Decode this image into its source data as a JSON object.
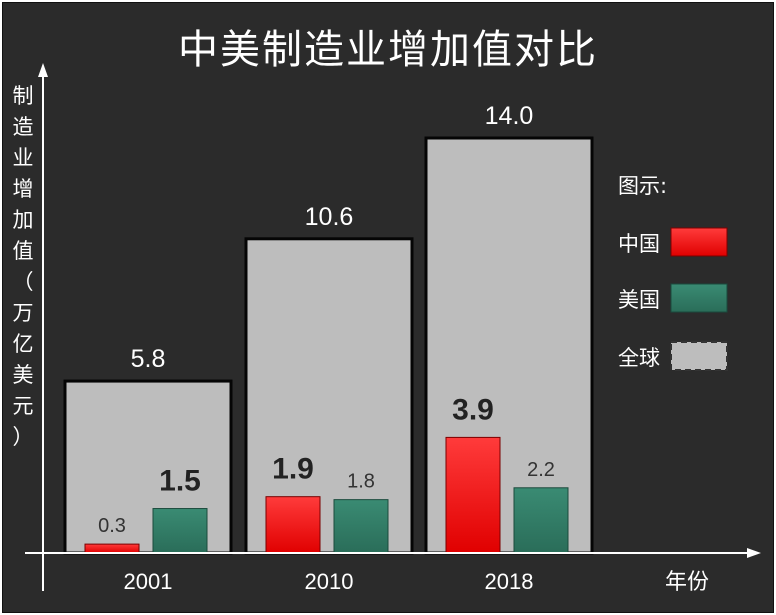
{
  "colors": {
    "background": "#2b2b2b",
    "china": "#ff1010",
    "usa": "#2f7a64",
    "global": "#bdbdbd",
    "axis": "#ffffff"
  },
  "chart_data": {
    "type": "bar",
    "title": "中美制造业增加值对比",
    "ylabel": "制造业增加值（万亿美元）",
    "xlabel": "年份",
    "categories": [
      "2001",
      "2010",
      "2018"
    ],
    "series": [
      {
        "name": "全球",
        "values": [
          5.8,
          10.6,
          14.0
        ],
        "labels": [
          "5.8",
          "10.6",
          "14.0"
        ]
      },
      {
        "name": "中国",
        "values": [
          0.3,
          1.9,
          3.9
        ],
        "labels": [
          "0.3",
          "1.9",
          "3.9"
        ]
      },
      {
        "name": "美国",
        "values": [
          1.5,
          1.8,
          2.2
        ],
        "labels": [
          "1.5",
          "1.8",
          "2.2"
        ]
      }
    ],
    "legend_title": "图示:",
    "legend_position": "right",
    "grid": false
  }
}
